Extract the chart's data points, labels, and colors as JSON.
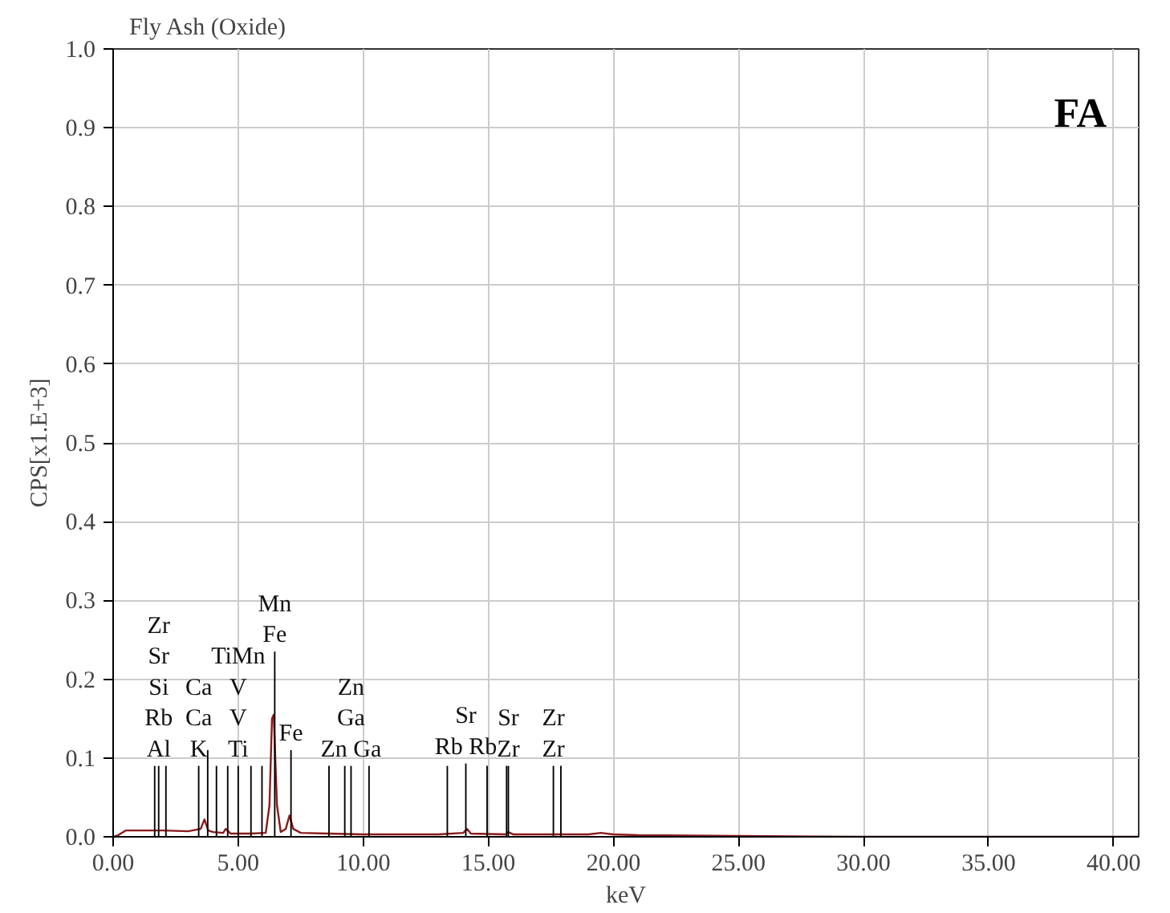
{
  "chart_data": {
    "type": "line",
    "title": "Fly Ash (Oxide)",
    "xlabel": "keV",
    "ylabel": "CPS[x1.E+3]",
    "xlim": [
      0,
      41
    ],
    "ylim": [
      0,
      1
    ],
    "xticks": [
      {
        "value": 0,
        "label": "0.00"
      },
      {
        "value": 5,
        "label": "5.00"
      },
      {
        "value": 10,
        "label": "10.00"
      },
      {
        "value": 15,
        "label": "15.00"
      },
      {
        "value": 20,
        "label": "20.00"
      },
      {
        "value": 25,
        "label": "25.00"
      },
      {
        "value": 30,
        "label": "30.00"
      },
      {
        "value": 35,
        "label": "35.00"
      },
      {
        "value": 40,
        "label": "40.00"
      }
    ],
    "yticks": [
      {
        "value": 0,
        "label": "0.0"
      },
      0.1,
      0.2,
      0.3,
      0.4,
      0.5,
      0.6,
      0.7,
      0.8,
      0.9,
      {
        "value": 1,
        "label": "1.0"
      }
    ],
    "grid": true,
    "series": [
      {
        "color": "#8b1a1a",
        "x": [
          0,
          0.2,
          0.5,
          1,
          2,
          3,
          3.5,
          3.65,
          3.8,
          4.0,
          4.4,
          4.5,
          4.7,
          5,
          5.5,
          6.1,
          6.25,
          6.35,
          6.42,
          6.55,
          6.7,
          6.9,
          7.05,
          7.2,
          7.5,
          8.6,
          10,
          13,
          14.0,
          14.15,
          14.3,
          15.7,
          15.8,
          16,
          19,
          19.5,
          20,
          21,
          25,
          30,
          35,
          40,
          41
        ],
        "values": [
          0,
          0.002,
          0.008,
          0.008,
          0.008,
          0.007,
          0.01,
          0.022,
          0.008,
          0.006,
          0.005,
          0.01,
          0.004,
          0.004,
          0.004,
          0.005,
          0.04,
          0.15,
          0.155,
          0.04,
          0.006,
          0.01,
          0.027,
          0.01,
          0.005,
          0.004,
          0.003,
          0.003,
          0.005,
          0.01,
          0.004,
          0.003,
          0.006,
          0.003,
          0.003,
          0.005,
          0.003,
          0.002,
          0.001,
          0,
          0,
          0,
          0
        ]
      },
      {
        "type": "bar",
        "color": "#000000",
        "x": [
          1.66,
          1.82,
          2.11,
          3.42,
          3.78,
          4.13,
          4.58,
          5.0,
          5.51,
          5.95,
          6.46,
          7.11,
          8.63,
          9.26,
          9.51,
          10.23,
          13.36,
          14.1,
          14.95,
          15.73,
          15.8,
          17.6,
          17.9
        ],
        "values": [
          0.09,
          0.09,
          0.09,
          0.09,
          0.11,
          0.09,
          0.09,
          0.09,
          0.09,
          0.09,
          0.235,
          0.11,
          0.09,
          0.09,
          0.09,
          0.09,
          0.09,
          0.093,
          0.09,
          0.09,
          0.09,
          0.09,
          0.09
        ]
      }
    ],
    "annotations": [
      "FA",
      {
        "text": "Zr\nSr\nSi\nRb\nAl",
        "x": 1.82,
        "y": 0.09
      },
      {
        "text": "Ca\nCa\nK",
        "x": 3.42,
        "y": 0.09
      },
      {
        "text": "TiMn\nV\nV\nTi",
        "x": 5.0,
        "y": 0.09
      },
      {
        "text": "Mn\nFe",
        "x": 6.46,
        "y": 0.235
      },
      {
        "text": "Fe",
        "x": 7.11,
        "y": 0.11
      },
      {
        "text": "Zn\nGa\nZn Ga",
        "x": 9.51,
        "y": 0.09
      },
      {
        "text": "Sr\nRb Rb",
        "x": 14.1,
        "y": 0.093
      },
      {
        "text": "Sr\nZr",
        "x": 15.8,
        "y": 0.09
      },
      {
        "text": "Zr\nZr",
        "x": 17.6,
        "y": 0.09
      }
    ]
  }
}
